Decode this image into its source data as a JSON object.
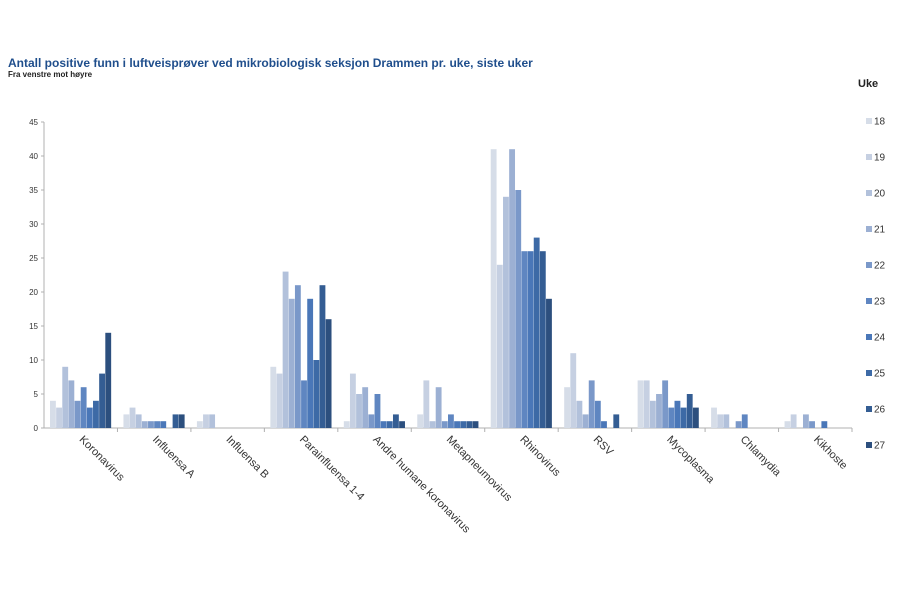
{
  "chart_data": {
    "type": "bar",
    "title": "Antall positive funn i luftveisprøver ved mikrobiologisk seksjon Drammen pr. uke, siste uker",
    "subtitle": "Fra venstre mot høyre",
    "legend_title": "Uke",
    "xlabel": "",
    "ylabel": "",
    "ylim": [
      0,
      45
    ],
    "yticks": [
      0,
      5,
      10,
      15,
      20,
      25,
      30,
      35,
      40,
      45
    ],
    "categories": [
      "Koronavirus",
      "Influensa A",
      "Influensa B",
      "Parainfluensa 1-4",
      "Andre humane koronavirus",
      "Metapneumovirus",
      "Rhinovirus",
      "RSV",
      "Mycoplasma",
      "Chlamydia",
      "Kikhoste"
    ],
    "series": [
      {
        "name": "18",
        "color": "#d6dde8",
        "values": [
          4,
          2,
          1,
          9,
          1,
          2,
          41,
          6,
          7,
          3,
          1
        ]
      },
      {
        "name": "19",
        "color": "#c6d0e2",
        "values": [
          3,
          3,
          2,
          8,
          8,
          7,
          24,
          11,
          7,
          2,
          2
        ]
      },
      {
        "name": "20",
        "color": "#b2c1db",
        "values": [
          9,
          2,
          2,
          23,
          5,
          1,
          34,
          4,
          4,
          2,
          0
        ]
      },
      {
        "name": "21",
        "color": "#9cb0d3",
        "values": [
          7,
          1,
          0,
          19,
          6,
          6,
          41,
          2,
          5,
          0,
          2
        ]
      },
      {
        "name": "22",
        "color": "#7a98c9",
        "values": [
          4,
          1,
          0,
          21,
          2,
          1,
          35,
          7,
          7,
          1,
          1
        ]
      },
      {
        "name": "23",
        "color": "#5f86c1",
        "values": [
          6,
          1,
          0,
          7,
          5,
          2,
          26,
          4,
          3,
          2,
          0
        ]
      },
      {
        "name": "24",
        "color": "#4a77b8",
        "values": [
          3,
          1,
          0,
          19,
          1,
          1,
          26,
          1,
          4,
          0,
          1
        ]
      },
      {
        "name": "25",
        "color": "#3d6aa6",
        "values": [
          4,
          0,
          0,
          10,
          1,
          1,
          28,
          0,
          3,
          0,
          0
        ]
      },
      {
        "name": "26",
        "color": "#345d93",
        "values": [
          8,
          2,
          0,
          21,
          2,
          1,
          26,
          2,
          5,
          0,
          0
        ]
      },
      {
        "name": "27",
        "color": "#2c4f7e",
        "values": [
          14,
          2,
          0,
          16,
          1,
          1,
          19,
          0,
          3,
          0,
          0
        ]
      }
    ]
  }
}
